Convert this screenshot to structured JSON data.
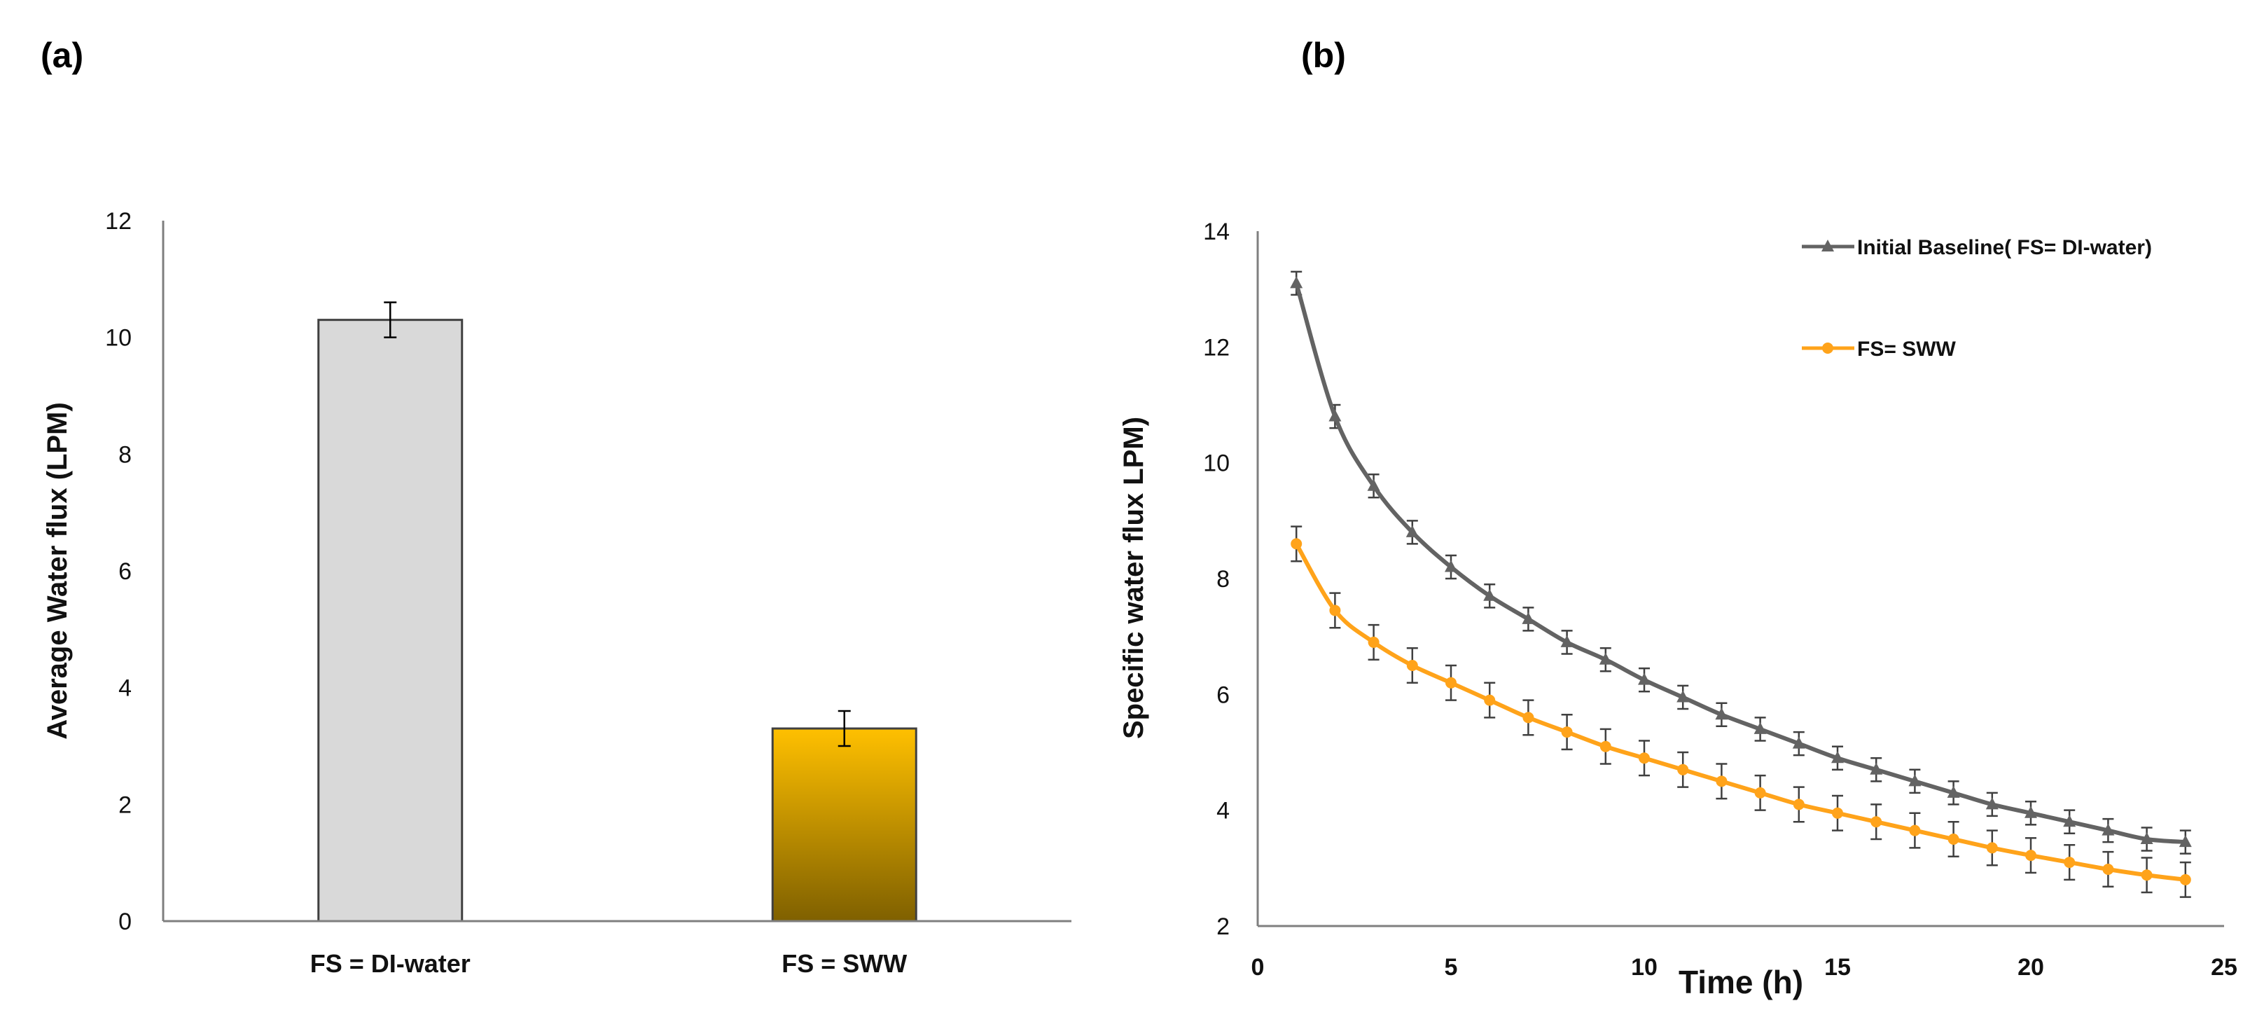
{
  "chart_data": [
    {
      "panel_label": "(a)",
      "type": "bar",
      "categories": [
        "FS = DI-water",
        "FS = SWW"
      ],
      "values": [
        10.3,
        3.3
      ],
      "errors": [
        0.3,
        0.3
      ],
      "bar_colors": [
        "#d9d9d9",
        "#ffc000"
      ],
      "gradient_bottom": "#7f6000",
      "ylabel": "Average Water flux (LPM)",
      "xlabel": "",
      "ylim": [
        0,
        12
      ],
      "yticks": [
        "0",
        "2",
        "4",
        "6",
        "8",
        "10",
        "12"
      ],
      "grid": false
    },
    {
      "panel_label": "(b)",
      "type": "line",
      "xlabel": "Time (h)",
      "ylabel": "Specific water flux LPM)",
      "xlim": [
        0,
        25
      ],
      "ylim": [
        2,
        14
      ],
      "xticks": [
        "0",
        "5",
        "10",
        "15",
        "20",
        "25"
      ],
      "yticks": [
        "2",
        "4",
        "6",
        "8",
        "10",
        "12",
        "14"
      ],
      "legend_position": "top-right",
      "grid": false,
      "x": [
        1,
        2,
        3,
        4,
        5,
        6,
        7,
        8,
        9,
        10,
        11,
        12,
        13,
        14,
        15,
        16,
        17,
        18,
        19,
        20,
        21,
        22,
        23,
        24
      ],
      "series": [
        {
          "name": "Initial Baseline( FS= DI-water)",
          "color": "#636363",
          "marker": "triangle",
          "values": [
            13.1,
            10.8,
            9.6,
            8.8,
            8.2,
            7.7,
            7.3,
            6.9,
            6.6,
            6.25,
            5.95,
            5.65,
            5.4,
            5.15,
            4.9,
            4.7,
            4.5,
            4.3,
            4.1,
            3.95,
            3.8,
            3.65,
            3.5,
            3.45
          ],
          "errors": [
            0.2,
            0.2,
            0.2,
            0.2,
            0.2,
            0.2,
            0.2,
            0.2,
            0.2,
            0.2,
            0.2,
            0.2,
            0.2,
            0.2,
            0.2,
            0.2,
            0.2,
            0.2,
            0.2,
            0.2,
            0.2,
            0.2,
            0.2,
            0.2
          ]
        },
        {
          "name": "FS= SWW",
          "color": "#ffa31a",
          "marker": "circle",
          "values": [
            8.6,
            7.45,
            6.9,
            6.5,
            6.2,
            5.9,
            5.6,
            5.35,
            5.1,
            4.9,
            4.7,
            4.5,
            4.3,
            4.1,
            3.95,
            3.8,
            3.65,
            3.5,
            3.35,
            3.22,
            3.1,
            2.98,
            2.88,
            2.8
          ],
          "errors": [
            0.3,
            0.3,
            0.3,
            0.3,
            0.3,
            0.3,
            0.3,
            0.3,
            0.3,
            0.3,
            0.3,
            0.3,
            0.3,
            0.3,
            0.3,
            0.3,
            0.3,
            0.3,
            0.3,
            0.3,
            0.3,
            0.3,
            0.3,
            0.3
          ]
        }
      ]
    }
  ]
}
